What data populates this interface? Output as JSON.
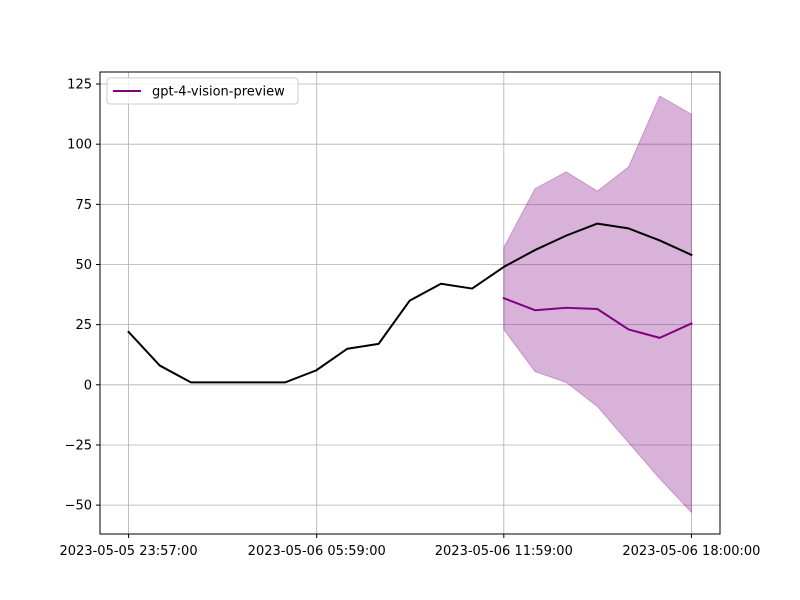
{
  "chart_data": {
    "type": "line",
    "title": "",
    "xlabel": "",
    "ylabel": "",
    "grid": true,
    "legend": {
      "position": "top-left",
      "entries": [
        "gpt-4-vision-preview"
      ]
    },
    "x_ticks": [
      "2023-05-05 23:57:00",
      "2023-05-06 05:59:00",
      "2023-05-06 11:59:00",
      "2023-05-06 18:00:00"
    ],
    "y_ticks": [
      125,
      100,
      75,
      50,
      25,
      0,
      -25,
      -50
    ],
    "y_tick_labels": [
      "125",
      "100",
      "75",
      "50",
      "25",
      "0",
      "−25",
      "−50"
    ],
    "ylim": [
      -62,
      130
    ],
    "xlim": [
      "2023-05-05 23:02:00",
      "2023-05-06 18:55:00"
    ],
    "series": [
      {
        "color": "#000000",
        "x": [
          "2023-05-05 23:57:00",
          "2023-05-06 00:57:00",
          "2023-05-06 01:57:00",
          "2023-05-06 02:57:00",
          "2023-05-06 03:57:00",
          "2023-05-06 04:58:00",
          "2023-05-06 05:58:00",
          "2023-05-06 06:58:00",
          "2023-05-06 07:58:00",
          "2023-05-06 08:58:00",
          "2023-05-06 09:58:00",
          "2023-05-06 10:58:00",
          "2023-05-06 11:59:00",
          "2023-05-06 12:59:00",
          "2023-05-06 13:59:00",
          "2023-05-06 14:59:00",
          "2023-05-06 15:59:00",
          "2023-05-06 16:59:00",
          "2023-05-06 18:00:00"
        ],
        "values": [
          22,
          8,
          1,
          1,
          1,
          1,
          6,
          15,
          17,
          35,
          42,
          40,
          49,
          56,
          62,
          67,
          65,
          60,
          54
        ]
      },
      {
        "name": "gpt-4-vision-preview",
        "color": "#800080",
        "x": [
          "2023-05-06 11:59:00",
          "2023-05-06 12:59:00",
          "2023-05-06 13:59:00",
          "2023-05-06 14:59:00",
          "2023-05-06 15:59:00",
          "2023-05-06 16:59:00",
          "2023-05-06 18:00:00"
        ],
        "values": [
          36,
          31,
          32,
          31.5,
          23,
          19.5,
          25.5
        ],
        "band_color": "#800080",
        "band_upper": [
          57,
          81.5,
          88.5,
          80.5,
          90.5,
          120,
          112.5
        ],
        "band_lower": [
          23,
          5.5,
          1,
          -9,
          -24,
          -39,
          -53
        ]
      }
    ]
  }
}
